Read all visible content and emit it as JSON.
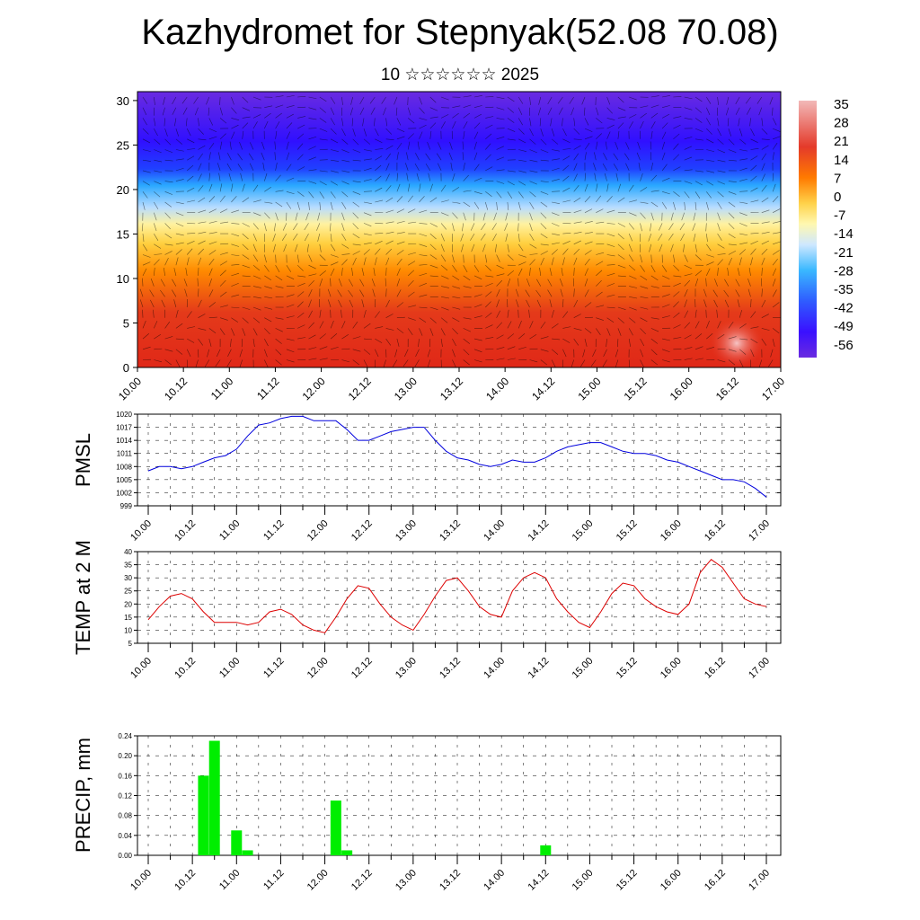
{
  "header": {
    "title": "Kazhydromet for Stepnyak(52.08 70.08)",
    "subtitle": "10 ☆☆☆☆☆☆ 2025"
  },
  "colors": {
    "pmsl_line": "#0000dd",
    "temp_line": "#dd0000",
    "precip_bar": "#00ee00",
    "colorbar_stops": [
      "#f2b8b8",
      "#e43a2a",
      "#ff7a00",
      "#ffd24a",
      "#fff8b0",
      "#cfe8ff",
      "#3ab8ff",
      "#2f5cff",
      "#3a10ff",
      "#6a2be0"
    ]
  },
  "chart_data": [
    {
      "type": "heatmap",
      "name": "temperature-height",
      "x_ticks": [
        "10.00",
        "10.12",
        "11.00",
        "11.12",
        "12.00",
        "12.12",
        "13.00",
        "13.12",
        "14.00",
        "14.12",
        "15.00",
        "15.12",
        "16.00",
        "16.12",
        "17.00"
      ],
      "y_ticks": [
        "0",
        "5",
        "10",
        "15",
        "20",
        "25",
        "30"
      ],
      "ylim": [
        0,
        31
      ],
      "colorbar_labels": [
        "35",
        "28",
        "21",
        "14",
        "7",
        "0",
        "-7",
        "-14",
        "-21",
        "-28",
        "-35",
        "-42",
        "-49",
        "-56"
      ]
    },
    {
      "type": "line",
      "name": "pmsl",
      "ylabel": "PMSL",
      "ylim": [
        999,
        1020
      ],
      "y_ticks": [
        "1020",
        "1017",
        "1014",
        "1011",
        "1008",
        "1005",
        "1002",
        "999"
      ],
      "x_ticks": [
        "10.00",
        "10.12",
        "11.00",
        "11.12",
        "12.00",
        "12.12",
        "13.00",
        "13.12",
        "14.00",
        "14.12",
        "15.00",
        "15.12",
        "16.00",
        "16.12",
        "17.00"
      ],
      "x_hours": [
        0,
        3,
        6,
        9,
        12,
        15,
        18,
        21,
        24,
        27,
        30,
        33,
        36,
        39,
        42,
        45,
        48,
        51,
        54,
        57,
        60,
        63,
        66,
        69,
        72,
        75,
        78,
        81,
        84,
        87,
        90,
        93,
        96,
        99,
        102,
        105,
        108,
        111,
        114,
        117,
        120,
        123,
        126,
        129,
        132,
        135,
        138,
        141,
        144,
        147,
        150,
        153,
        156,
        159,
        162,
        165,
        168
      ],
      "values": [
        1007,
        1008,
        1008,
        1007.5,
        1008,
        1009,
        1010,
        1010.5,
        1012,
        1015,
        1017.5,
        1018,
        1019,
        1019.5,
        1019.5,
        1018.5,
        1018.5,
        1018.5,
        1016.5,
        1014,
        1014,
        1015,
        1016,
        1016.5,
        1017,
        1017,
        1014,
        1011.5,
        1010,
        1009.5,
        1008.5,
        1008,
        1008.5,
        1009.5,
        1009,
        1009,
        1010,
        1011.5,
        1012.5,
        1013,
        1013.5,
        1013.5,
        1012.5,
        1011.5,
        1011,
        1011,
        1010.5,
        1009.5,
        1009,
        1008,
        1007,
        1006,
        1005,
        1005,
        1004.5,
        1003,
        1001
      ]
    },
    {
      "type": "line",
      "name": "temp-2m",
      "ylabel": "TEMP at 2 M",
      "ylim": [
        5,
        40
      ],
      "y_ticks": [
        "40",
        "35",
        "30",
        "25",
        "20",
        "15",
        "10",
        "5"
      ],
      "x_ticks": [
        "10.00",
        "10.12",
        "11.00",
        "11.12",
        "12.00",
        "12.12",
        "13.00",
        "13.12",
        "14.00",
        "14.12",
        "15.00",
        "15.12",
        "16.00",
        "16.12",
        "17.00"
      ],
      "x_hours": [
        0,
        3,
        6,
        9,
        12,
        15,
        18,
        21,
        24,
        27,
        30,
        33,
        36,
        39,
        42,
        45,
        48,
        51,
        54,
        57,
        60,
        63,
        66,
        69,
        72,
        75,
        78,
        81,
        84,
        87,
        90,
        93,
        96,
        99,
        102,
        105,
        108,
        111,
        114,
        117,
        120,
        123,
        126,
        129,
        132,
        135,
        138,
        141,
        144,
        147,
        150,
        153,
        156,
        159,
        162,
        165,
        168
      ],
      "values": [
        14,
        19,
        23,
        24,
        22,
        17,
        13,
        13,
        13,
        12,
        13,
        17,
        18,
        16,
        12,
        10,
        9,
        15,
        22,
        27,
        26,
        20,
        15,
        12,
        10,
        16,
        23,
        29,
        30,
        25,
        19,
        16,
        15,
        25,
        30,
        32,
        30,
        22,
        17,
        13,
        11,
        17,
        24,
        28,
        27,
        22,
        19,
        17,
        16,
        20,
        32,
        37,
        34,
        28,
        22,
        20,
        19
      ]
    },
    {
      "type": "bar",
      "name": "precip",
      "ylabel": "PRECIP, mm",
      "ylim": [
        0,
        0.24
      ],
      "y_ticks": [
        "0.24",
        "0.20",
        "0.16",
        "0.12",
        "0.08",
        "0.04",
        "0.00"
      ],
      "x_ticks": [
        "10.00",
        "10.12",
        "11.00",
        "11.12",
        "12.00",
        "12.12",
        "13.00",
        "13.12",
        "14.00",
        "14.12",
        "15.00",
        "15.12",
        "16.00",
        "16.12",
        "17.00"
      ],
      "x_hours": [
        15,
        18,
        24,
        27,
        51,
        54,
        108
      ],
      "values": [
        0.16,
        0.23,
        0.05,
        0.01,
        0.11,
        0.01,
        0.02
      ]
    }
  ]
}
